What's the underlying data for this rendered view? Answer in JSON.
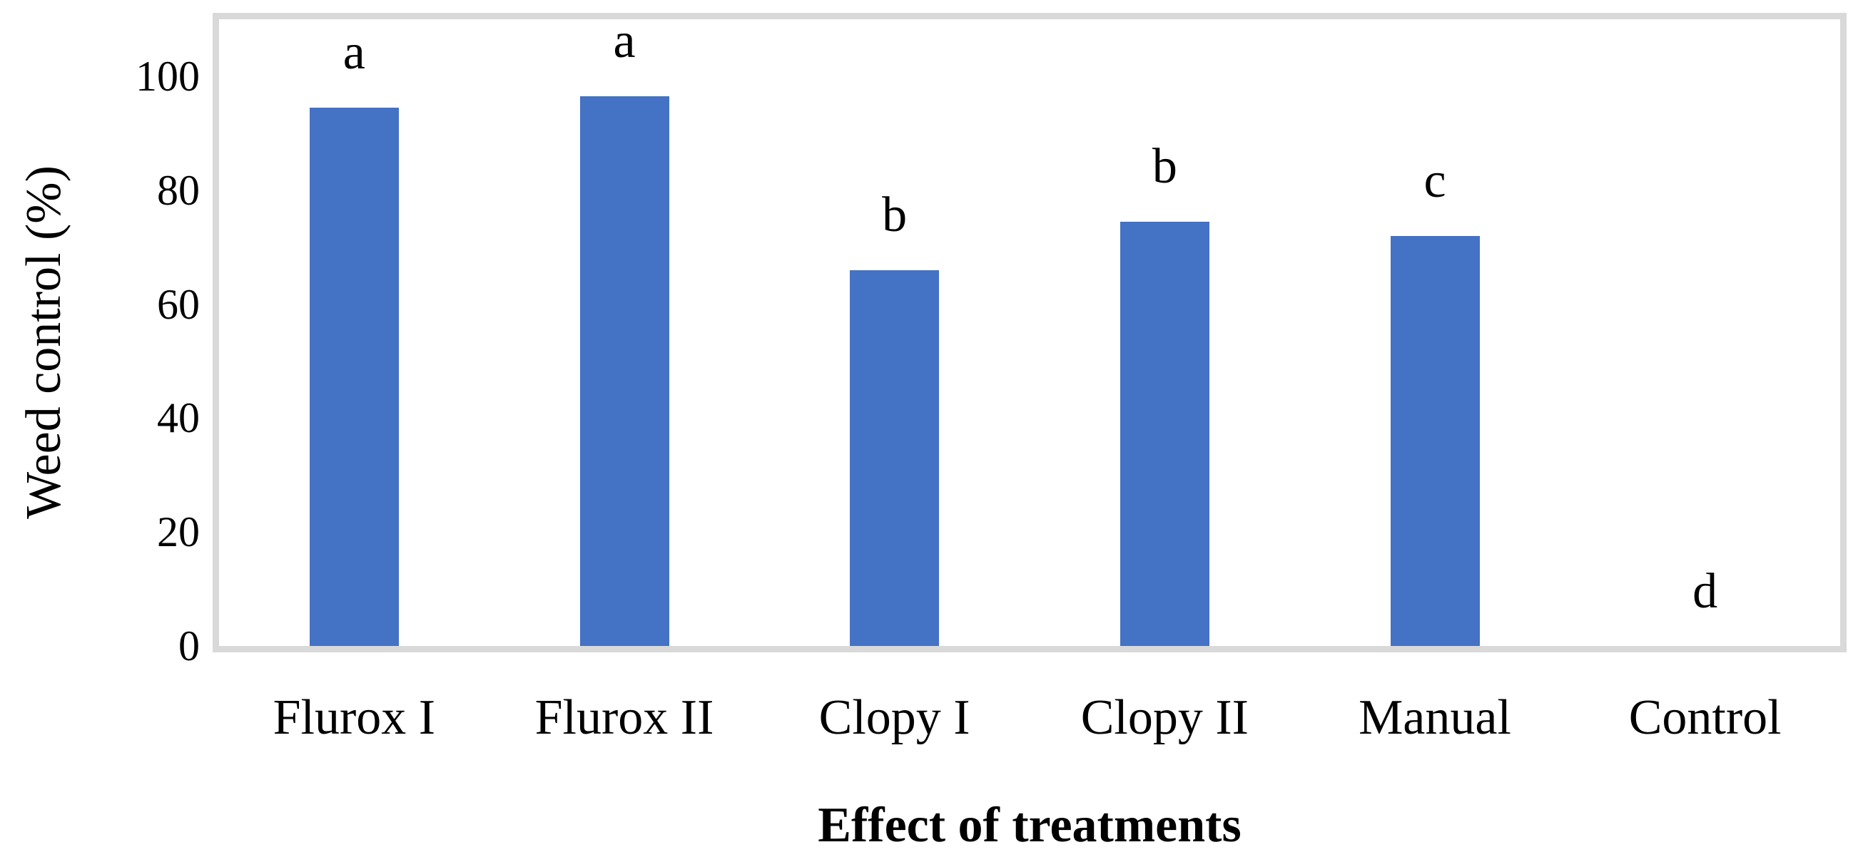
{
  "chart_data": {
    "type": "bar",
    "title": "",
    "xlabel": "Effect of treatments",
    "ylabel": "Weed control (%)",
    "categories": [
      "Flurox I",
      "Flurox II",
      "Clopy I",
      "Clopy II",
      "Manual",
      "Control"
    ],
    "values": [
      94.5,
      96.5,
      66,
      74.5,
      72,
      0
    ],
    "bar_labels": [
      "a",
      "a",
      "b",
      "b",
      "c",
      "d"
    ],
    "yticks": [
      0,
      20,
      40,
      60,
      80,
      100
    ],
    "ylim": [
      0,
      110
    ],
    "grid": false,
    "legend": false,
    "bar_color": "#4472C4",
    "frame_color": "#D9D9D9",
    "text_color": "#000000"
  }
}
